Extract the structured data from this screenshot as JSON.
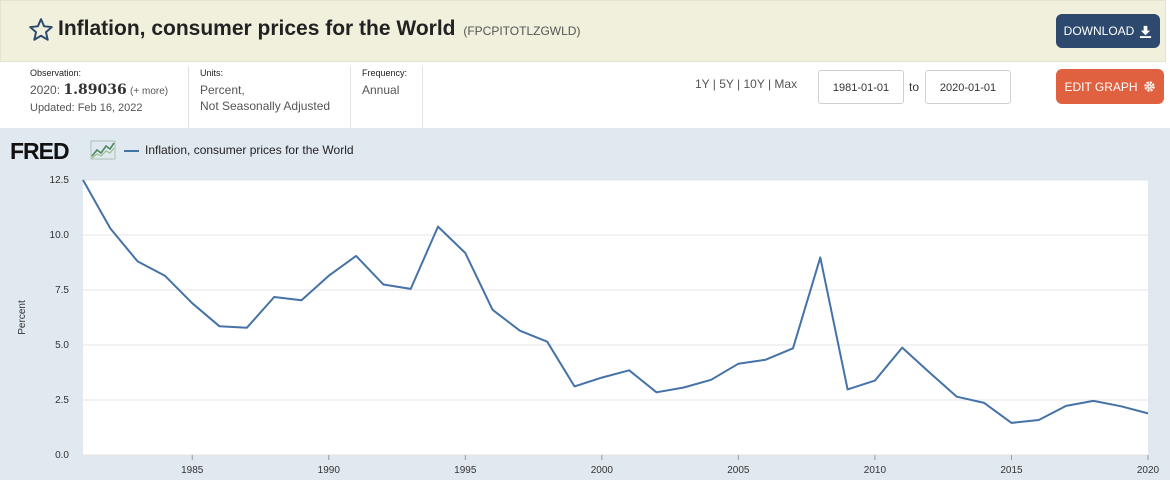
{
  "header": {
    "title": "Inflation, consumer prices for the World",
    "series_id": "(FPCPITOTLZGWLD)",
    "download_label": "DOWNLOAD",
    "edit_label": "EDIT GRAPH"
  },
  "meta": {
    "observation_label": "Observation:",
    "observation_year": "2020:",
    "observation_value": "1.89036",
    "observation_more": "(+ more)",
    "updated": "Updated: Feb 16, 2022",
    "units_label": "Units:",
    "units_line1": "Percent,",
    "units_line2": "Not Seasonally Adjusted",
    "frequency_label": "Frequency:",
    "frequency_value": "Annual"
  },
  "range": {
    "buttons": "1Y | 5Y | 10Y | Max",
    "start": "1981-01-01",
    "to_label": "to",
    "end": "2020-01-01"
  },
  "logo": "FRED",
  "colors": {
    "series": "#4572a7",
    "download": "#2d4a6e",
    "edit": "#e0613f",
    "title_bg": "#f0f0dc"
  },
  "chart_data": {
    "type": "line",
    "ylabel": "Percent",
    "ylim": [
      0,
      12.5
    ],
    "xlim": [
      1981,
      2020
    ],
    "yticks": [
      "0.0",
      "2.5",
      "5.0",
      "7.5",
      "10.0",
      "12.5"
    ],
    "xticks": [
      "1985",
      "1990",
      "1995",
      "2000",
      "2005",
      "2010",
      "2015",
      "2020"
    ],
    "grid": true,
    "legend": "top-left",
    "series": [
      {
        "name": "Inflation, consumer prices for the World",
        "x": [
          1981,
          1982,
          1983,
          1984,
          1985,
          1986,
          1987,
          1988,
          1989,
          1990,
          1991,
          1992,
          1993,
          1994,
          1995,
          1996,
          1997,
          1998,
          1999,
          2000,
          2001,
          2002,
          2003,
          2004,
          2005,
          2006,
          2007,
          2008,
          2009,
          2010,
          2011,
          2012,
          2013,
          2014,
          2015,
          2016,
          2017,
          2018,
          2019,
          2020
        ],
        "values": [
          12.5,
          10.3,
          8.8,
          8.15,
          6.9,
          5.85,
          5.78,
          7.18,
          7.03,
          8.15,
          9.05,
          7.75,
          7.55,
          10.38,
          9.18,
          6.6,
          5.65,
          5.15,
          3.12,
          3.52,
          3.85,
          2.85,
          3.07,
          3.42,
          4.15,
          4.33,
          4.85,
          8.98,
          2.98,
          3.38,
          4.88,
          3.75,
          2.65,
          2.37,
          1.46,
          1.59,
          2.23,
          2.46,
          2.22,
          1.89
        ]
      }
    ]
  }
}
